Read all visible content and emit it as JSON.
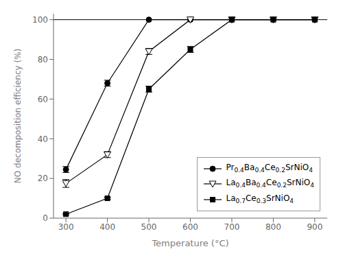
{
  "chart_data": {
    "type": "line",
    "x": [
      300,
      400,
      500,
      600,
      700,
      800,
      900
    ],
    "series": [
      {
        "name": "Pr0.4Ba0.4Ce0.2SrNiO4",
        "color": "black",
        "marker": "circle",
        "line_style": "solid",
        "values": [
          24.5,
          68,
          100,
          100,
          100,
          100,
          100
        ],
        "errors": [
          1.5,
          1.5,
          0,
          0,
          0,
          0,
          0
        ]
      },
      {
        "name": "La0.4Ba0.4Ce0.2SrNiO4",
        "color": "black",
        "marker": "triangle-down-open",
        "line_style": "solid",
        "values": [
          17.5,
          32,
          84,
          100,
          100,
          100,
          100
        ],
        "errors": [
          2.0,
          1.5,
          1.5,
          0,
          0,
          0,
          0
        ]
      },
      {
        "name": "La0.7Ce0.3SrNiO4",
        "color": "black",
        "marker": "square",
        "line_style": "solid",
        "values": [
          2,
          10,
          65,
          85,
          100,
          100,
          100
        ],
        "errors": [
          0.3,
          0.5,
          1.5,
          1.5,
          0,
          0,
          0
        ]
      }
    ],
    "xlabel": "Temperature (°C)",
    "ylabel": "NO decomposition efficiency (%)",
    "xlim": [
      270,
      930
    ],
    "ylim": [
      0,
      103
    ],
    "xticks": [
      300,
      400,
      500,
      600,
      700,
      800,
      900
    ],
    "yticks": [
      0,
      20,
      40,
      60,
      80,
      100
    ],
    "hlines": [
      100
    ],
    "legend": "lower right",
    "grid": false
  }
}
